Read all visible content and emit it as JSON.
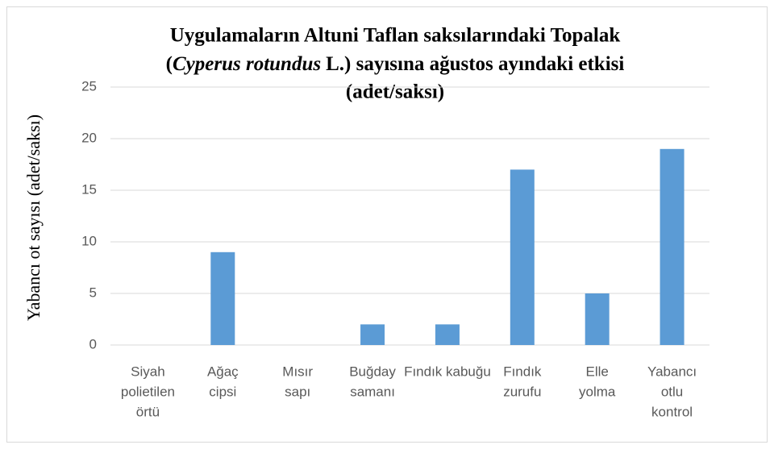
{
  "chart_data": {
    "type": "bar",
    "title": [
      "Uygulamaların Altuni Taflan saksılarındaki Topalak",
      "(",
      "Cyperus rotundus",
      "L.) sayısına ağustos ayındaki etkisi",
      "(adet/saksı)"
    ],
    "y_label": "Yabancı ot sayısı (adet/saksı)",
    "categories": [
      [
        "Siyah",
        "polietilen",
        "örtü"
      ],
      [
        "Ağaç",
        "cipsi"
      ],
      [
        "Mısır",
        "sapı"
      ],
      [
        "Buğday",
        "samanı"
      ],
      [
        "Fındık kabuğu"
      ],
      [
        "Fındık",
        "zurufu"
      ],
      [
        "Elle",
        "yolma"
      ],
      [
        "Yabancı",
        "otlu",
        "kontrol"
      ]
    ],
    "values": [
      0,
      9,
      0,
      2,
      2,
      17,
      5,
      19
    ],
    "color": "#5b9bd5",
    "ylim": [
      0,
      25
    ],
    "yticks": [
      0,
      5,
      10,
      15,
      20,
      25
    ],
    "grid": true
  }
}
